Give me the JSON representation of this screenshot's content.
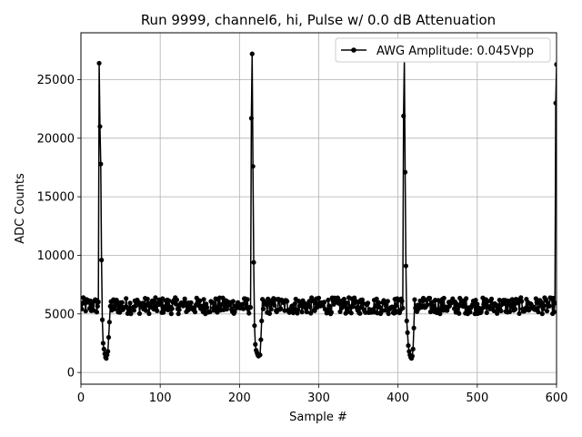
{
  "chart_data": {
    "type": "line",
    "title": "Run 9999, channel6, hi, Pulse w/ 0.0 dB Attenuation",
    "xlabel": "Sample #",
    "ylabel": "ADC Counts",
    "xlim": [
      0,
      600
    ],
    "ylim": [
      -1000,
      29000
    ],
    "xticks": [
      0,
      100,
      200,
      300,
      400,
      500,
      600
    ],
    "yticks": [
      0,
      5000,
      10000,
      15000,
      20000,
      25000
    ],
    "grid": true,
    "legend_position": "top-right",
    "series": [
      {
        "name": "AWG Amplitude: 0.045Vpp",
        "color": "#000000",
        "marker": "circle",
        "baseline": 5700,
        "pulses": [
          {
            "start": 23,
            "peak": [
              26400,
              21000,
              17800,
              9600
            ],
            "undershoot": [
              4500,
              2500,
              2000,
              1600,
              1300,
              1200,
              1500,
              1800,
              3000,
              4300
            ]
          },
          {
            "start": 215,
            "peak": [
              21700,
              27200,
              17600,
              9400
            ],
            "undershoot": [
              4000,
              2400,
              1900,
              1700,
              1500,
              1400,
              1500,
              1500,
              2800,
              4400
            ]
          },
          {
            "start": 407,
            "peak": [
              21900,
              26700,
              17100,
              9100
            ],
            "undershoot": [
              4400,
              3400,
              2300,
              1800,
              1500,
              1300,
              1200,
              1400,
              2000,
              3800
            ]
          },
          {
            "start": 599,
            "peak": [
              23000,
              26300
            ],
            "undershoot": []
          }
        ],
        "x_range": [
          0,
          600
        ]
      }
    ]
  }
}
